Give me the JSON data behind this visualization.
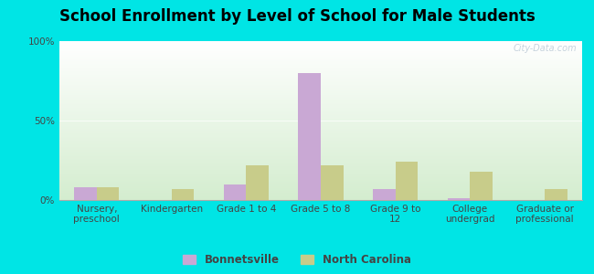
{
  "title": "School Enrollment by Level of School for Male Students",
  "categories": [
    "Nursery,\npreschool",
    "Kindergarten",
    "Grade 1 to 4",
    "Grade 5 to 8",
    "Grade 9 to\n12",
    "College\nundergrad",
    "Graduate or\nprofessional"
  ],
  "bonnetsville": [
    8,
    0,
    10,
    80,
    7,
    1,
    0
  ],
  "north_carolina": [
    8,
    7,
    22,
    22,
    24,
    18,
    7
  ],
  "bonnetsville_color": "#c9a8d4",
  "north_carolina_color": "#c8cc8a",
  "background_outer": "#00e5e5",
  "plot_bg_top": "#ffffff",
  "plot_bg_bottom": "#d4edcf",
  "bar_width": 0.3,
  "ylim": [
    0,
    100
  ],
  "yticks": [
    0,
    50,
    100
  ],
  "ytick_labels": [
    "0%",
    "50%",
    "100%"
  ],
  "legend_bonnetsville": "Bonnetsville",
  "legend_nc": "North Carolina",
  "title_fontsize": 12,
  "tick_fontsize": 7.5,
  "legend_fontsize": 8.5
}
